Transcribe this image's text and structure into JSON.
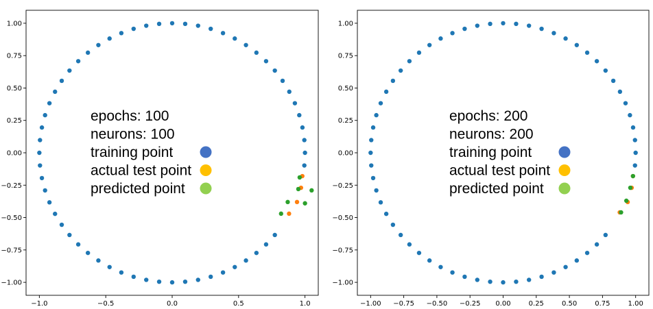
{
  "chart_data": [
    {
      "type": "scatter",
      "title": "",
      "xlabel": "",
      "ylabel": "",
      "xlim": [
        -1.1,
        1.1
      ],
      "ylim": [
        -1.1,
        1.1
      ],
      "x_ticks": [
        "−1.0",
        "−0.5",
        "0.0",
        "0.5",
        "1.0"
      ],
      "x_tick_values": [
        -1.0,
        -0.5,
        0.0,
        0.5,
        1.0
      ],
      "y_ticks": [
        "1.00",
        "0.75",
        "0.50",
        "0.25",
        "0.00",
        "−0.25",
        "−0.50",
        "−0.75",
        "−1.00"
      ],
      "y_tick_values": [
        1.0,
        0.75,
        0.5,
        0.25,
        0.0,
        -0.25,
        -0.5,
        -0.75,
        -1.0
      ],
      "grid": false,
      "annotation": {
        "lines": [
          "epochs: 100",
          "neurons: 100"
        ],
        "legend": [
          {
            "label": "training point",
            "color": "#4472c4"
          },
          {
            "label": "actual test point",
            "color": "#ffc000"
          },
          {
            "label": "predicted point",
            "color": "#92d050"
          }
        ]
      },
      "series": [
        {
          "role": "training",
          "color": "#1f77b4",
          "circle_count": 64,
          "skip_from_angle_deg": -6,
          "skip_to_angle_deg": -36
        },
        {
          "role": "actual-test",
          "color": "#ff7f0e",
          "x": [
            0.98,
            0.97,
            0.94,
            0.88
          ],
          "y": [
            -0.18,
            -0.27,
            -0.38,
            -0.47
          ]
        },
        {
          "role": "predicted",
          "color": "#2ca02c",
          "x": [
            0.96,
            1.05,
            0.95,
            1.0,
            0.87,
            0.82
          ],
          "y": [
            -0.19,
            -0.29,
            -0.28,
            -0.39,
            -0.38,
            -0.47
          ]
        }
      ]
    },
    {
      "type": "scatter",
      "title": "",
      "xlabel": "",
      "ylabel": "",
      "xlim": [
        -1.1,
        1.1
      ],
      "ylim": [
        -1.1,
        1.1
      ],
      "x_ticks": [
        "−1.00",
        "−0.75",
        "−0.50",
        "−0.25",
        "0.00",
        "0.25",
        "0.50",
        "0.75",
        "1.00"
      ],
      "x_tick_values": [
        -1.0,
        -0.75,
        -0.5,
        -0.25,
        0.0,
        0.25,
        0.5,
        0.75,
        1.0
      ],
      "y_ticks": [
        "1.00",
        "0.75",
        "0.50",
        "0.25",
        "0.00",
        "−0.25",
        "−0.50",
        "−0.75",
        "−1.00"
      ],
      "y_tick_values": [
        1.0,
        0.75,
        0.5,
        0.25,
        0.0,
        -0.25,
        -0.5,
        -0.75,
        -1.0
      ],
      "grid": false,
      "annotation": {
        "lines": [
          "epochs: 200",
          "neurons: 200"
        ],
        "legend": [
          {
            "label": "training point",
            "color": "#4472c4"
          },
          {
            "label": "actual test point",
            "color": "#ffc000"
          },
          {
            "label": "predicted point",
            "color": "#92d050"
          }
        ]
      },
      "series": [
        {
          "role": "training",
          "color": "#1f77b4",
          "circle_count": 64,
          "skip_from_angle_deg": -6,
          "skip_to_angle_deg": -36
        },
        {
          "role": "actual-test",
          "color": "#ff7f0e",
          "x": [
            0.98,
            0.97,
            0.94,
            0.88
          ],
          "y": [
            -0.18,
            -0.27,
            -0.38,
            -0.46
          ]
        },
        {
          "role": "predicted",
          "color": "#2ca02c",
          "x": [
            0.98,
            0.96,
            0.93,
            0.89
          ],
          "y": [
            -0.18,
            -0.27,
            -0.37,
            -0.46
          ]
        }
      ]
    }
  ]
}
